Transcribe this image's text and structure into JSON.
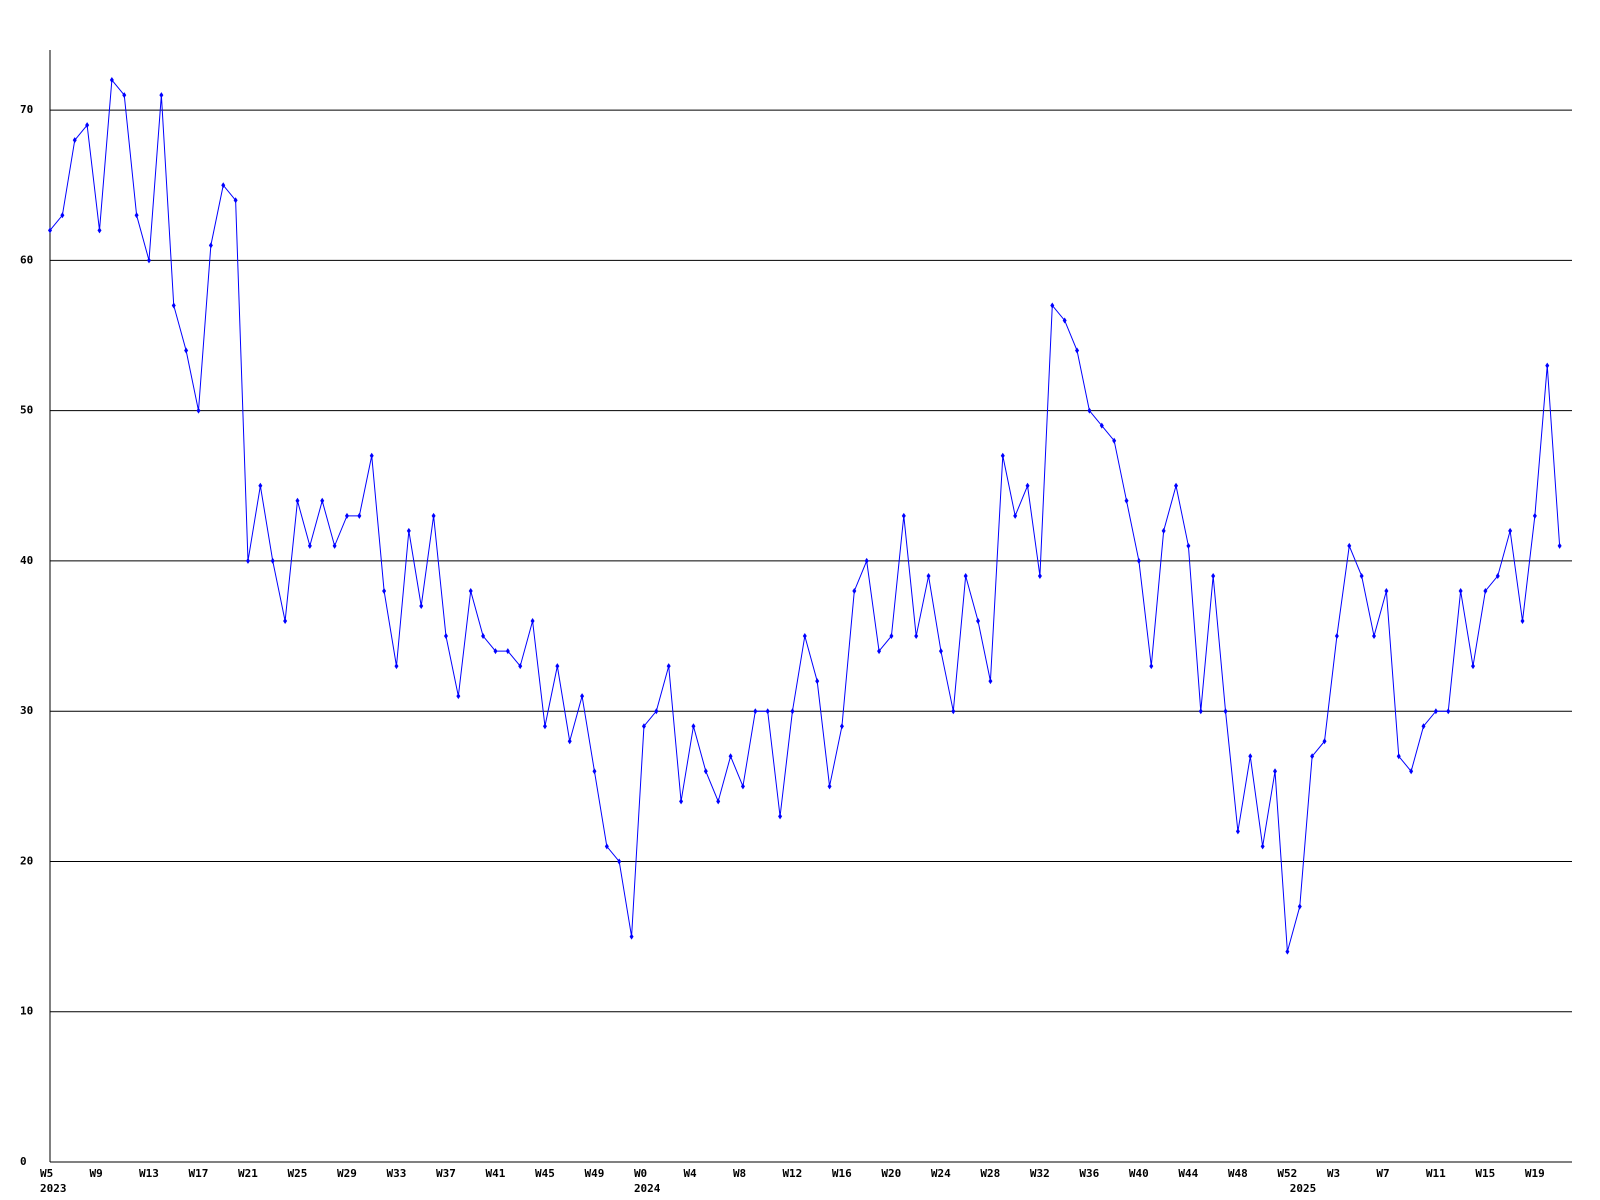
{
  "chart_data": {
    "type": "line",
    "categories": [
      "W5",
      null,
      null,
      null,
      "W9",
      null,
      null,
      null,
      "W13",
      null,
      null,
      null,
      "W17",
      null,
      null,
      null,
      "W21",
      null,
      null,
      null,
      "W25",
      null,
      null,
      null,
      "W29",
      null,
      null,
      null,
      "W33",
      null,
      null,
      null,
      "W37",
      null,
      null,
      null,
      "W41",
      null,
      null,
      null,
      "W45",
      null,
      null,
      null,
      "W49",
      null,
      null,
      null,
      "W0",
      null,
      null,
      null,
      "W4",
      null,
      null,
      null,
      "W8",
      null,
      null,
      null,
      "W12",
      null,
      null,
      null,
      "W16",
      null,
      null,
      null,
      "W20",
      null,
      null,
      null,
      "W24",
      null,
      null,
      null,
      "W28",
      null,
      null,
      null,
      "W32",
      null,
      null,
      null,
      "W36",
      null,
      null,
      null,
      "W40",
      null,
      null,
      null,
      "W44",
      null,
      null,
      null,
      "W48",
      null,
      null,
      null,
      "W52",
      null,
      null,
      null,
      "W3",
      null,
      null,
      null,
      "W7",
      null,
      null,
      null,
      "W11",
      null,
      null,
      null,
      "W15",
      null,
      null,
      null,
      "W19",
      null,
      null
    ],
    "years": [
      "2023",
      null,
      null,
      null,
      null,
      null,
      null,
      null,
      null,
      null,
      null,
      null,
      null,
      null,
      null,
      null,
      null,
      null,
      null,
      null,
      null,
      null,
      null,
      null,
      null,
      null,
      null,
      null,
      null,
      null,
      null,
      null,
      null,
      null,
      null,
      null,
      null,
      null,
      null,
      null,
      null,
      null,
      null,
      null,
      null,
      null,
      null,
      null,
      "2024",
      null,
      null,
      null,
      null,
      null,
      null,
      null,
      null,
      null,
      null,
      null,
      null,
      null,
      null,
      null,
      null,
      null,
      null,
      null,
      null,
      null,
      null,
      null,
      null,
      null,
      null,
      null,
      null,
      null,
      null,
      null,
      null,
      null,
      null,
      null,
      null,
      null,
      null,
      null,
      null,
      null,
      null,
      null,
      null,
      null,
      null,
      null,
      null,
      null,
      null,
      null,
      null,
      "2025",
      null,
      null,
      null,
      null,
      null,
      null,
      null,
      null,
      null,
      null,
      null,
      null,
      null,
      null,
      null,
      null,
      null,
      null,
      null,
      null,
      null
    ],
    "series": [
      {
        "color": "#0000ff",
        "values": [
          62,
          63,
          68,
          69,
          62,
          72,
          71,
          63,
          60,
          71,
          57,
          54,
          50,
          61,
          65,
          64,
          40,
          45,
          40,
          36,
          44,
          41,
          44,
          41,
          43,
          43,
          47,
          38,
          33,
          42,
          37,
          43,
          35,
          31,
          38,
          35,
          34,
          34,
          33,
          36,
          29,
          33,
          28,
          31,
          26,
          21,
          20,
          15,
          29,
          30,
          33,
          24,
          29,
          26,
          24,
          27,
          25,
          30,
          30,
          23,
          30,
          35,
          32,
          25,
          29,
          38,
          40,
          34,
          35,
          43,
          35,
          39,
          34,
          30,
          39,
          36,
          32,
          47,
          43,
          45,
          39,
          57,
          56,
          54,
          50,
          49,
          48,
          44,
          40,
          33,
          42,
          45,
          41,
          30,
          39,
          30,
          22,
          27,
          21,
          26,
          14,
          17,
          27,
          28,
          35,
          41,
          39,
          35,
          38,
          27,
          26,
          29,
          30,
          30,
          38,
          33,
          38,
          39,
          42,
          36,
          43,
          53,
          41
        ]
      }
    ],
    "ylim": [
      0,
      74
    ],
    "yticks": [
      0,
      10,
      20,
      30,
      40,
      50,
      60,
      70
    ],
    "grid": true
  }
}
